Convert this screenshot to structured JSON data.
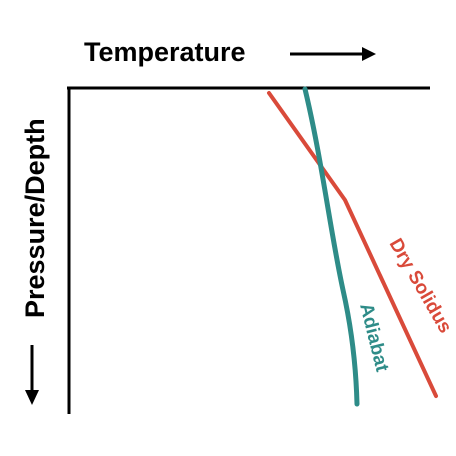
{
  "diagram": {
    "x_axis_title": "Temperature",
    "y_axis_title": "Pressure/Depth",
    "axis_color": "#000000",
    "curves": [
      {
        "name": "Dry Solidus",
        "color": "#d94a3a"
      },
      {
        "name": "Adiabat",
        "color": "#2e8c88"
      }
    ]
  }
}
